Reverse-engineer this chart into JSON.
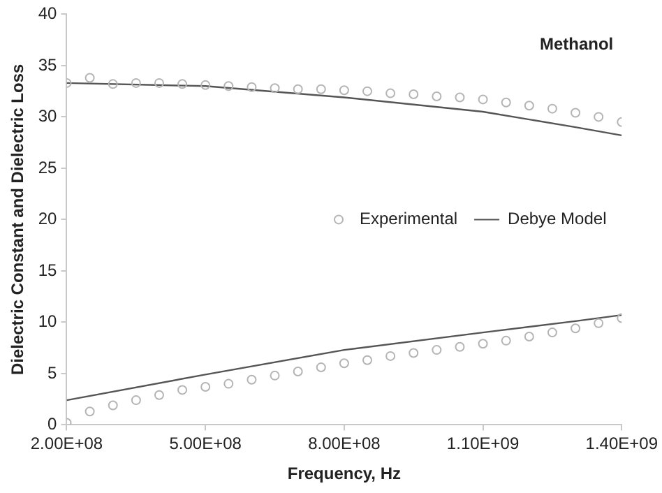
{
  "chart_data": {
    "type": "scatter",
    "xlabel": "Frequency, Hz",
    "ylabel": "Dielectric Constant and Dielectric Loss",
    "annotations": [
      "Methanol"
    ],
    "xlim": [
      200000000,
      1400000000
    ],
    "xticks": [
      {
        "value": 200000000,
        "label": "2.00E+08"
      },
      {
        "value": 500000000,
        "label": "5.00E+08"
      },
      {
        "value": 800000000,
        "label": "8.00E+08"
      },
      {
        "value": 1100000000,
        "label": "1.10E+09"
      },
      {
        "value": 1400000000,
        "label": "1.40E+09"
      }
    ],
    "ylim": [
      0,
      40
    ],
    "yticks": [
      0,
      5,
      10,
      15,
      20,
      25,
      30,
      35,
      40
    ],
    "grid": false,
    "legend": "right",
    "marker": "circle",
    "series": [
      {
        "name": "Experimental",
        "type": "scatter",
        "color": "#b4b4b4",
        "x": [
          200000000,
          250000000,
          300000000,
          350000000,
          400000000,
          450000000,
          500000000,
          550000000,
          600000000,
          650000000,
          700000000,
          750000000,
          800000000,
          850000000,
          900000000,
          950000000,
          1000000000,
          1050000000,
          1100000000,
          1150000000,
          1200000000,
          1250000000,
          1300000000,
          1350000000,
          1400000000
        ],
        "values": [
          33.3,
          33.8,
          33.2,
          33.3,
          33.3,
          33.2,
          33.1,
          33.0,
          32.9,
          32.8,
          32.7,
          32.7,
          32.6,
          32.5,
          32.3,
          32.2,
          32.0,
          31.9,
          31.7,
          31.4,
          31.1,
          30.8,
          30.4,
          30.0,
          29.5
        ]
      },
      {
        "type": "scatter",
        "color": "#b4b4b4",
        "x": [
          200000000,
          250000000,
          300000000,
          350000000,
          400000000,
          450000000,
          500000000,
          550000000,
          600000000,
          650000000,
          700000000,
          750000000,
          800000000,
          850000000,
          900000000,
          950000000,
          1000000000,
          1050000000,
          1100000000,
          1150000000,
          1200000000,
          1250000000,
          1300000000,
          1350000000,
          1400000000
        ],
        "values": [
          0.2,
          1.3,
          1.9,
          2.4,
          2.9,
          3.4,
          3.7,
          4.0,
          4.4,
          4.8,
          5.2,
          5.6,
          6.0,
          6.3,
          6.7,
          7.0,
          7.3,
          7.6,
          7.9,
          8.2,
          8.6,
          9.0,
          9.4,
          9.9,
          10.4
        ]
      },
      {
        "name": "Debye Model",
        "type": "line",
        "color": "#555555",
        "marker": "none",
        "x": [
          200000000,
          500000000,
          800000000,
          1100000000,
          1300000000,
          1400000000
        ],
        "values": [
          33.3,
          33.0,
          31.9,
          30.5,
          29.0,
          28.2
        ]
      },
      {
        "type": "line",
        "color": "#555555",
        "marker": "none",
        "x": [
          200000000,
          500000000,
          800000000,
          1100000000,
          1300000000,
          1400000000
        ],
        "values": [
          2.4,
          4.9,
          7.3,
          9.0,
          10.1,
          10.7
        ]
      }
    ]
  }
}
